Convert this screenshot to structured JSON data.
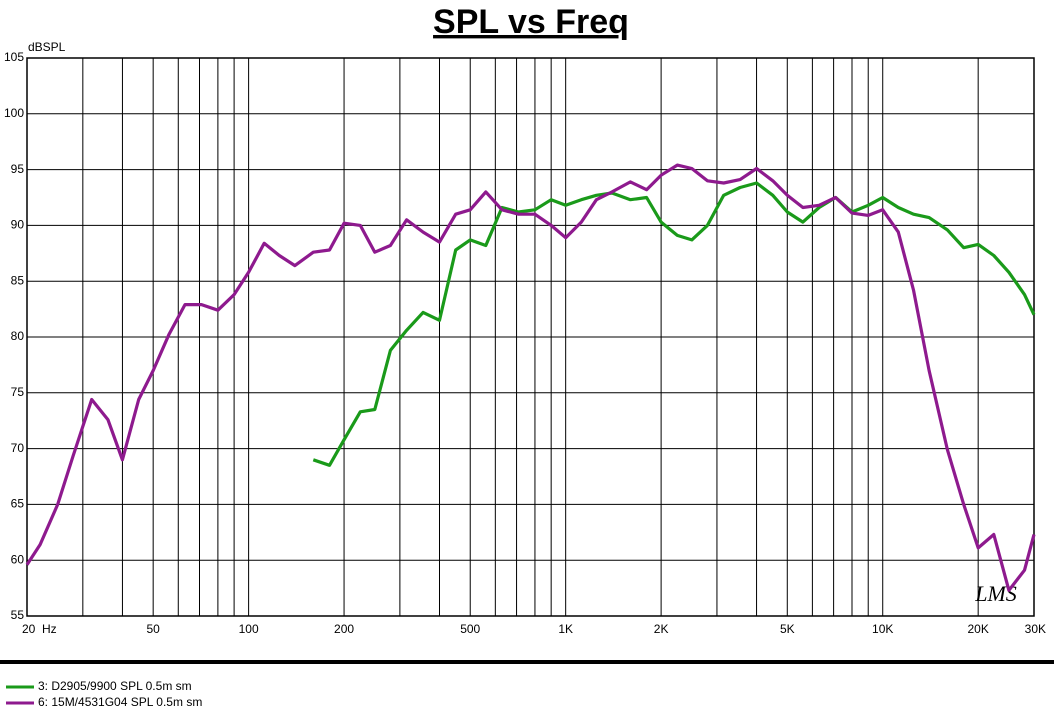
{
  "chart_data": {
    "type": "line",
    "title": "SPL vs Freq",
    "ylabel": "dBSPL",
    "annotation": "LMS",
    "xscale": "log",
    "grid": true,
    "legend": "bottom-left",
    "xlim": [
      20,
      30000
    ],
    "ylim": [
      55,
      105
    ],
    "xticks": [
      {
        "value": 20,
        "label": "20  Hz"
      },
      50,
      100,
      200,
      500,
      {
        "value": 1000,
        "label": "1K"
      },
      {
        "value": 2000,
        "label": "2K"
      },
      {
        "value": 5000,
        "label": "5K"
      },
      {
        "value": 10000,
        "label": "10K"
      },
      {
        "value": 20000,
        "label": "20K"
      },
      {
        "value": 30000,
        "label": "30K"
      }
    ],
    "xminorticks": [
      30,
      40,
      60,
      70,
      80,
      90,
      300,
      400,
      600,
      700,
      800,
      900,
      3000,
      4000,
      6000,
      7000,
      8000,
      9000
    ],
    "yticks": [
      55,
      60,
      65,
      70,
      75,
      80,
      85,
      90,
      95,
      100,
      105
    ],
    "x": [
      20,
      22,
      25,
      28,
      32,
      36,
      40,
      45,
      50,
      56,
      63,
      71,
      80,
      90,
      100,
      112,
      125,
      140,
      160,
      180,
      200,
      225,
      250,
      280,
      315,
      355,
      400,
      450,
      500,
      560,
      630,
      710,
      800,
      900,
      1000,
      1120,
      1250,
      1400,
      1600,
      1800,
      2000,
      2250,
      2500,
      2800,
      3150,
      3550,
      4000,
      4500,
      5000,
      5600,
      6300,
      7100,
      8000,
      9000,
      10000,
      11200,
      12500,
      14000,
      16000,
      18000,
      20000,
      22400,
      25000,
      28000,
      30000
    ],
    "series": [
      {
        "name": "3: D2905/9900 SPL 0.5m sm",
        "color": "#1a9a1a",
        "values": [
          null,
          null,
          null,
          null,
          null,
          null,
          null,
          null,
          null,
          null,
          null,
          null,
          null,
          null,
          null,
          null,
          null,
          null,
          69,
          68.5,
          70.8,
          73.3,
          73.5,
          78.8,
          80.6,
          82.2,
          81.5,
          87.8,
          88.7,
          88.2,
          91.6,
          91.2,
          91.4,
          92.3,
          91.8,
          92.3,
          92.7,
          92.9,
          92.3,
          92.5,
          90.3,
          89.1,
          88.7,
          90,
          92.7,
          93.4,
          93.8,
          92.7,
          91.2,
          90.3,
          91.6,
          92.5,
          91.2,
          91.8,
          92.5,
          91.6,
          91,
          90.7,
          89.6,
          88,
          88.3,
          87.3,
          85.8,
          83.8,
          82
        ]
      },
      {
        "name": "6: 15M/4531G04 SPL 0.5m sm",
        "color": "#8e1a8e",
        "values": [
          59.6,
          61.4,
          65,
          69.4,
          74.4,
          72.6,
          69,
          74.4,
          77,
          80.2,
          82.9,
          82.9,
          82.4,
          83.8,
          85.8,
          88.4,
          87.3,
          86.4,
          87.6,
          87.8,
          90.2,
          90,
          87.6,
          88.2,
          90.5,
          89.4,
          88.5,
          91,
          91.4,
          93,
          91.4,
          91,
          91,
          90,
          88.9,
          90.3,
          92.3,
          93,
          93.9,
          93.2,
          94.5,
          95.4,
          95.1,
          94,
          93.8,
          94.1,
          95.1,
          94,
          92.7,
          91.6,
          91.8,
          92.5,
          91.1,
          90.9,
          91.4,
          89.4,
          84.2,
          77,
          69.9,
          65,
          61.1,
          62.3,
          57.3,
          59.1,
          62.3
        ]
      }
    ]
  }
}
